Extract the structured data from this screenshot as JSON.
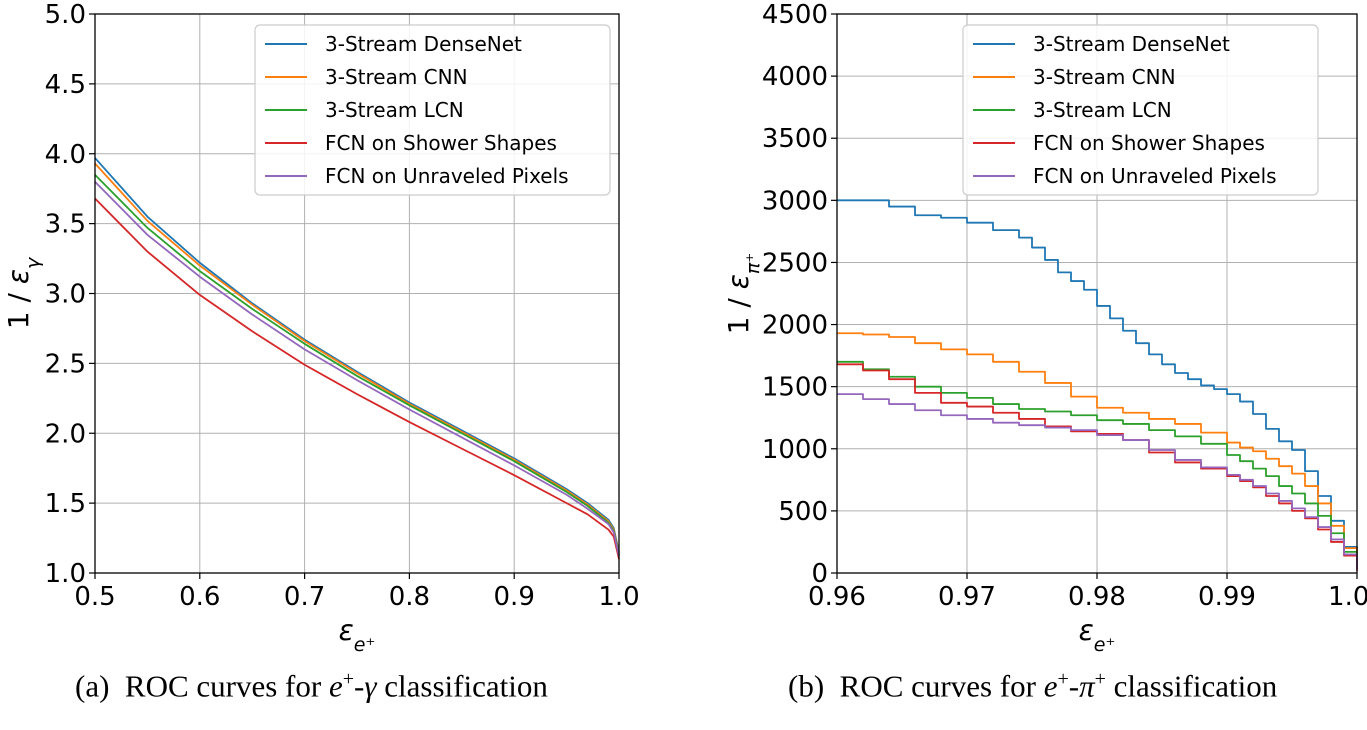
{
  "chart_data": [
    {
      "type": "line",
      "panel": "a",
      "xlabel": "ε_{e⁺}",
      "ylabel": "1 / ε_γ",
      "xlim": [
        0.5,
        1.0
      ],
      "ylim": [
        1.0,
        5.0
      ],
      "xticks": [
        "0.5",
        "0.6",
        "0.7",
        "0.8",
        "0.9",
        "1.0"
      ],
      "yticks": [
        "1.0",
        "1.5",
        "2.0",
        "2.5",
        "3.0",
        "3.5",
        "4.0",
        "4.5",
        "5.0"
      ],
      "xtick_values": [
        0.5,
        0.6,
        0.7,
        0.8,
        0.9,
        1.0
      ],
      "ytick_values": [
        1.0,
        1.5,
        2.0,
        2.5,
        3.0,
        3.5,
        4.0,
        4.5,
        5.0
      ],
      "grid": true,
      "legend_position": "top-right",
      "step": false,
      "caption": "(a) ROC curves for e⁺-γ classification",
      "series": [
        {
          "name": "3-Stream DenseNet",
          "color": "#1f77b4",
          "x": [
            0.5,
            0.55,
            0.6,
            0.65,
            0.7,
            0.75,
            0.8,
            0.85,
            0.9,
            0.95,
            0.97,
            0.99,
            0.995,
            1.0
          ],
          "y": [
            3.97,
            3.55,
            3.22,
            2.93,
            2.67,
            2.44,
            2.22,
            2.02,
            1.82,
            1.6,
            1.5,
            1.38,
            1.32,
            1.15
          ]
        },
        {
          "name": "3-Stream CNN",
          "color": "#ff7f0e",
          "x": [
            0.5,
            0.55,
            0.6,
            0.65,
            0.7,
            0.75,
            0.8,
            0.85,
            0.9,
            0.95,
            0.97,
            0.99,
            0.995,
            1.0
          ],
          "y": [
            3.93,
            3.52,
            3.2,
            2.92,
            2.66,
            2.43,
            2.21,
            2.01,
            1.81,
            1.59,
            1.49,
            1.37,
            1.31,
            1.14
          ]
        },
        {
          "name": "3-Stream LCN",
          "color": "#2ca02c",
          "x": [
            0.5,
            0.55,
            0.6,
            0.65,
            0.7,
            0.75,
            0.8,
            0.85,
            0.9,
            0.95,
            0.97,
            0.99,
            0.995,
            1.0
          ],
          "y": [
            3.85,
            3.47,
            3.16,
            2.89,
            2.64,
            2.41,
            2.2,
            2.0,
            1.8,
            1.58,
            1.48,
            1.36,
            1.3,
            1.13
          ]
        },
        {
          "name": "FCN on Shower Shapes",
          "color": "#d62728",
          "x": [
            0.5,
            0.55,
            0.6,
            0.65,
            0.7,
            0.75,
            0.8,
            0.85,
            0.9,
            0.95,
            0.97,
            0.99,
            0.995,
            1.0
          ],
          "y": [
            3.68,
            3.3,
            2.99,
            2.73,
            2.49,
            2.28,
            2.08,
            1.89,
            1.7,
            1.5,
            1.42,
            1.31,
            1.26,
            1.1
          ]
        },
        {
          "name": "FCN on Unraveled Pixels",
          "color": "#9467bd",
          "x": [
            0.5,
            0.55,
            0.6,
            0.65,
            0.7,
            0.75,
            0.8,
            0.85,
            0.9,
            0.95,
            0.97,
            0.99,
            0.995,
            1.0
          ],
          "y": [
            3.8,
            3.42,
            3.12,
            2.85,
            2.6,
            2.38,
            2.17,
            1.97,
            1.77,
            1.56,
            1.46,
            1.35,
            1.29,
            1.12
          ]
        }
      ]
    },
    {
      "type": "line",
      "panel": "b",
      "xlabel": "ε_{e⁺}",
      "ylabel": "1 / ε_{π⁺}",
      "xlim": [
        0.96,
        1.0
      ],
      "ylim": [
        0,
        4500
      ],
      "xticks": [
        "0.96",
        "0.97",
        "0.98",
        "0.99",
        "1.00"
      ],
      "yticks": [
        "0",
        "500",
        "1000",
        "1500",
        "2000",
        "2500",
        "3000",
        "3500",
        "4000",
        "4500"
      ],
      "xtick_values": [
        0.96,
        0.97,
        0.98,
        0.99,
        1.0
      ],
      "ytick_values": [
        0,
        500,
        1000,
        1500,
        2000,
        2500,
        3000,
        3500,
        4000,
        4500
      ],
      "grid": true,
      "legend_position": "top-right",
      "step": true,
      "caption": "(b) ROC curves for e⁺-π⁺ classification",
      "series": [
        {
          "name": "3-Stream DenseNet",
          "color": "#1f77b4",
          "x": [
            0.96,
            0.962,
            0.964,
            0.966,
            0.968,
            0.97,
            0.972,
            0.974,
            0.975,
            0.976,
            0.977,
            0.978,
            0.979,
            0.98,
            0.981,
            0.982,
            0.983,
            0.984,
            0.985,
            0.986,
            0.987,
            0.988,
            0.989,
            0.99,
            0.991,
            0.992,
            0.993,
            0.994,
            0.995,
            0.996,
            0.997,
            0.998,
            0.999,
            1.0
          ],
          "y": [
            3000,
            3000,
            2950,
            2880,
            2860,
            2820,
            2760,
            2700,
            2620,
            2520,
            2420,
            2350,
            2280,
            2150,
            2050,
            1950,
            1850,
            1760,
            1680,
            1610,
            1560,
            1510,
            1480,
            1440,
            1380,
            1280,
            1160,
            1060,
            990,
            820,
            620,
            420,
            210,
            50
          ]
        },
        {
          "name": "3-Stream CNN",
          "color": "#ff7f0e",
          "x": [
            0.96,
            0.962,
            0.964,
            0.966,
            0.968,
            0.97,
            0.972,
            0.974,
            0.976,
            0.978,
            0.98,
            0.982,
            0.984,
            0.986,
            0.988,
            0.99,
            0.991,
            0.992,
            0.993,
            0.994,
            0.995,
            0.996,
            0.997,
            0.998,
            0.999,
            1.0
          ],
          "y": [
            1930,
            1920,
            1900,
            1850,
            1800,
            1760,
            1700,
            1620,
            1530,
            1420,
            1330,
            1290,
            1240,
            1200,
            1130,
            1050,
            1010,
            980,
            920,
            860,
            800,
            700,
            560,
            380,
            200,
            40
          ]
        },
        {
          "name": "3-Stream LCN",
          "color": "#2ca02c",
          "x": [
            0.96,
            0.962,
            0.964,
            0.966,
            0.968,
            0.97,
            0.972,
            0.974,
            0.976,
            0.978,
            0.98,
            0.982,
            0.984,
            0.986,
            0.988,
            0.99,
            0.991,
            0.992,
            0.993,
            0.994,
            0.995,
            0.996,
            0.997,
            0.998,
            0.999,
            1.0
          ],
          "y": [
            1700,
            1640,
            1580,
            1500,
            1450,
            1410,
            1360,
            1320,
            1300,
            1270,
            1230,
            1200,
            1150,
            1100,
            1040,
            950,
            900,
            840,
            780,
            700,
            640,
            560,
            460,
            320,
            170,
            30
          ]
        },
        {
          "name": "FCN on Shower Shapes",
          "color": "#d62728",
          "x": [
            0.96,
            0.962,
            0.964,
            0.966,
            0.968,
            0.97,
            0.972,
            0.974,
            0.976,
            0.978,
            0.98,
            0.982,
            0.984,
            0.986,
            0.988,
            0.99,
            0.991,
            0.992,
            0.993,
            0.994,
            0.995,
            0.996,
            0.997,
            0.998,
            0.999,
            1.0
          ],
          "y": [
            1680,
            1630,
            1560,
            1450,
            1370,
            1340,
            1290,
            1240,
            1180,
            1140,
            1120,
            1070,
            970,
            890,
            840,
            780,
            740,
            690,
            620,
            560,
            500,
            440,
            350,
            250,
            140,
            20
          ]
        },
        {
          "name": "FCN on Unraveled Pixels",
          "color": "#9467bd",
          "x": [
            0.96,
            0.962,
            0.964,
            0.966,
            0.968,
            0.97,
            0.972,
            0.974,
            0.976,
            0.978,
            0.98,
            0.982,
            0.984,
            0.986,
            0.988,
            0.99,
            0.991,
            0.992,
            0.993,
            0.994,
            0.995,
            0.996,
            0.997,
            0.998,
            0.999,
            1.0
          ],
          "y": [
            1440,
            1400,
            1360,
            1310,
            1270,
            1240,
            1210,
            1190,
            1170,
            1150,
            1110,
            1070,
            990,
            910,
            850,
            790,
            750,
            700,
            640,
            580,
            520,
            450,
            370,
            270,
            150,
            30
          ]
        }
      ]
    }
  ]
}
